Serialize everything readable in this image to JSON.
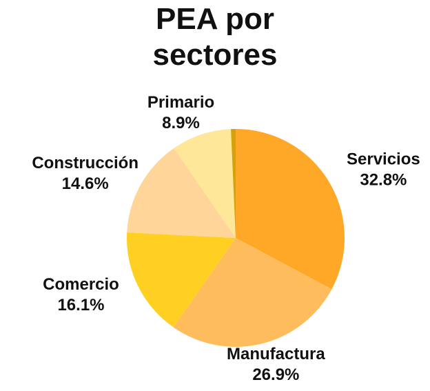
{
  "chart_data": {
    "type": "pie",
    "title": "PEA por sectores",
    "categories": [
      "Servicios",
      "Manufactura",
      "Comercio",
      "Construcción",
      "Primario",
      null
    ],
    "values": [
      32.8,
      26.9,
      16.1,
      14.6,
      8.9,
      0.7
    ],
    "value_labels": [
      "32.8%",
      "26.9%",
      "16.1%",
      "14.6%",
      "8.9%",
      null
    ],
    "colors": [
      "#ffa726",
      "#ffbc5c",
      "#ffd022",
      "#ffd59a",
      "#ffe79a",
      "#d4a20a"
    ]
  }
}
